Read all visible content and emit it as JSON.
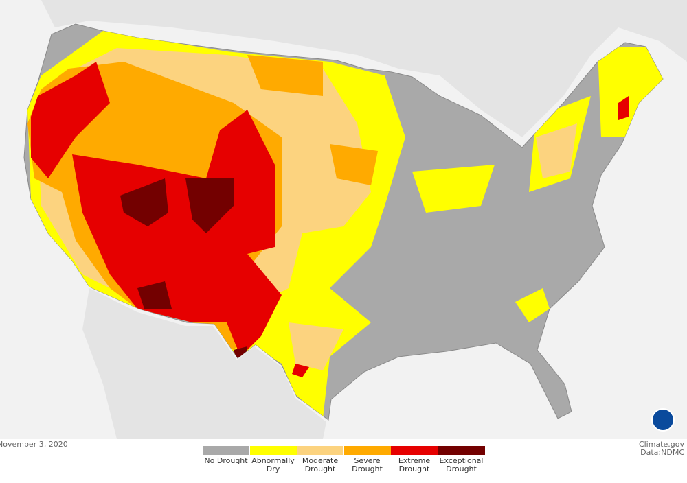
{
  "date": "November 3, 2020",
  "legend": [
    {
      "label": "No Drought",
      "color": "#a9a9a9"
    },
    {
      "label": "Abnormally Dry",
      "color": "#ffff00"
    },
    {
      "label": "Moderate Drought",
      "color": "#fcd37f"
    },
    {
      "label": "Severe Drought",
      "color": "#ffaa00"
    },
    {
      "label": "Extreme Drought",
      "color": "#e60000"
    },
    {
      "label": "Exceptional Drought",
      "color": "#730000"
    }
  ],
  "credits": [
    "Climate.gov",
    "Data:NDMC"
  ]
}
